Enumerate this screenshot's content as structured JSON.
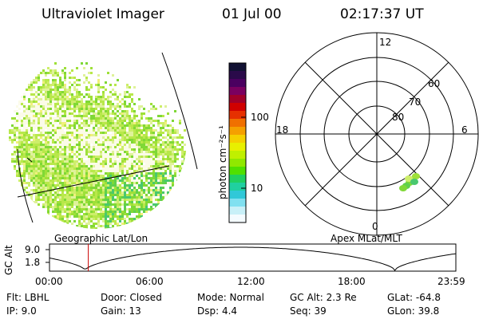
{
  "header": {
    "title": "Ultraviolet Imager",
    "date": "01 Jul 00",
    "time": "02:17:37 UT"
  },
  "colorbar": {
    "label": "photon cm⁻²s⁻¹",
    "ticks": [
      "100",
      "10"
    ],
    "colors": [
      "#111133",
      "#2a0a4a",
      "#4a0060",
      "#7a0060",
      "#a0002a",
      "#d00000",
      "#e63000",
      "#f07000",
      "#f5a000",
      "#f5d000",
      "#e8f000",
      "#c0f000",
      "#90e800",
      "#50e000",
      "#20d060",
      "#20d0a0",
      "#30c8d8",
      "#80e0f0",
      "#c8f0f8",
      "#f4fbff"
    ]
  },
  "panels": {
    "geo_label": "Geographic Lat/Lon",
    "apex_label": "Apex MLat/MLT"
  },
  "polar": {
    "mlt_labels": {
      "top": "12",
      "left": "18",
      "right": "6",
      "bottom": "0"
    },
    "lat_labels": [
      "60",
      "70",
      "80"
    ]
  },
  "timeline": {
    "ylabel": "GC Alt",
    "yticks": [
      "9.0",
      "1.8"
    ],
    "xticks": [
      "00:00",
      "06:00",
      "12:00",
      "18:00",
      "23:59"
    ],
    "marker_time_hours": 2.29
  },
  "info": {
    "flt": "Flt: LBHL",
    "ip": "IP:  9.0",
    "door": "Door: Closed",
    "gain": "Gain: 13",
    "mode": "Mode: Normal",
    "dsp": "Dsp:    4.4",
    "gcalt": "GC Alt: 2.3 Re",
    "seq": "Seq: 39",
    "glat": "GLat: -64.8",
    "glon": "GLon:  39.8"
  }
}
